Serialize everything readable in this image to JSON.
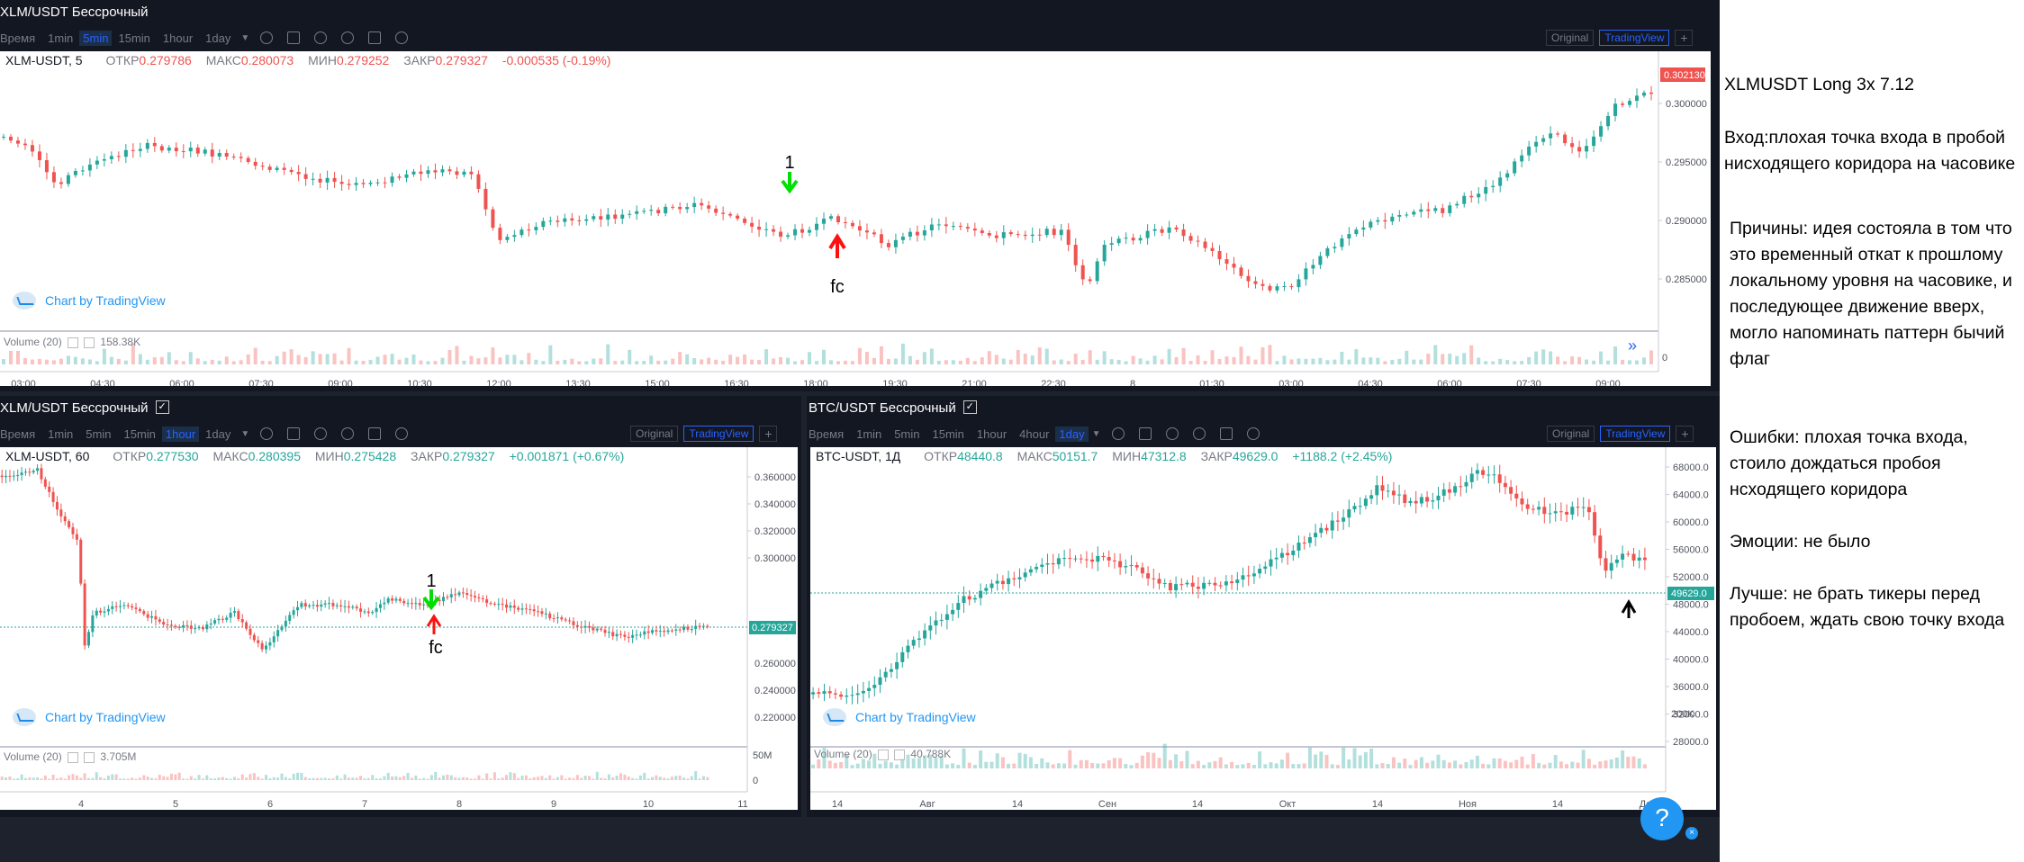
{
  "colors": {
    "up": "#26a69a",
    "down": "#ef5350",
    "accent": "#2962ff"
  },
  "top": {
    "title": "XLM/USDT Бессрочный",
    "toolbar": [
      "Время",
      "1min",
      "5min",
      "15min",
      "1hour",
      "1day"
    ],
    "active_tf": "5min",
    "view": {
      "original": "Original",
      "tradingview": "TradingView",
      "plus": "+"
    },
    "legend": {
      "symbol": "XLM-USDT, 5",
      "o_lbl": "ОТКР",
      "o": "0.279786",
      "h_lbl": "МАКС",
      "h": "0.280073",
      "l_lbl": "МИН",
      "l": "0.279252",
      "c_lbl": "ЗАКР",
      "c": "0.279327",
      "chg": "-0.000535 (-0.19%)"
    },
    "price_ticks": [
      "0.300000",
      "0.295000",
      "0.290000",
      "0.285000"
    ],
    "last_price": "0.302130",
    "volume": {
      "label": "Volume (20)",
      "value": "158.38K"
    },
    "vol_zero": "0",
    "time_ticks": [
      "03:00",
      "04:30",
      "06:00",
      "07:30",
      "09:00",
      "10:30",
      "12:00",
      "13:30",
      "15:00",
      "16:30",
      "18:00",
      "19:30",
      "21:00",
      "22:30",
      "8",
      "01:30",
      "03:00",
      "04:30",
      "06:00",
      "07:30",
      "09:00"
    ],
    "watermark": "Chart by TradingView",
    "marker_entry": "1",
    "marker_fc": "fc",
    "scroll_btn": "»"
  },
  "bl": {
    "title": "XLM/USDT Бессрочный",
    "check": "✓",
    "toolbar": [
      "Время",
      "1min",
      "5min",
      "15min",
      "1hour",
      "1day"
    ],
    "active_tf": "1hour",
    "view": {
      "original": "Original",
      "tradingview": "TradingView",
      "plus": "+"
    },
    "legend": {
      "symbol": "XLM-USDT, 60",
      "o_lbl": "ОТКР",
      "o": "0.277530",
      "h_lbl": "МАКС",
      "h": "0.280395",
      "l_lbl": "МИН",
      "l": "0.275428",
      "c_lbl": "ЗАКР",
      "c": "0.279327",
      "chg": "+0.001871 (+0.67%)"
    },
    "price_ticks": [
      "0.360000",
      "0.340000",
      "0.320000",
      "0.300000",
      "0.260000",
      "0.240000",
      "0.220000"
    ],
    "last_price": "0.279327",
    "volume": {
      "label": "Volume (20)",
      "value": "3.705M"
    },
    "vol_ticks": [
      "50M",
      "0"
    ],
    "time_ticks": [
      "4",
      "5",
      "6",
      "7",
      "8",
      "9",
      "10",
      "11"
    ],
    "watermark": "Chart by TradingView",
    "marker_entry": "1",
    "marker_fc": "fc"
  },
  "br": {
    "title": "BTC/USDT Бессрочный",
    "check": "✓",
    "toolbar": [
      "Время",
      "1min",
      "5min",
      "15min",
      "1hour",
      "4hour",
      "1day"
    ],
    "active_tf": "1day",
    "view": {
      "original": "Original",
      "tradingview": "TradingView",
      "plus": "+"
    },
    "legend": {
      "symbol": "BTC-USDT, 1Д",
      "o_lbl": "ОТКР",
      "o": "48440.8",
      "h_lbl": "МАКС",
      "h": "50151.7",
      "l_lbl": "МИН",
      "l": "47312.8",
      "c_lbl": "ЗАКР",
      "c": "49629.0",
      "chg": "+1188.2 (+2.45%)"
    },
    "price_ticks": [
      "68000.0",
      "64000.0",
      "60000.0",
      "56000.0",
      "52000.0",
      "48000.0",
      "44000.0",
      "40000.0",
      "36000.0",
      "32000.0",
      "28000.0"
    ],
    "last_price": "49629.0",
    "volume": {
      "label": "Volume (20)",
      "value": "40.788K"
    },
    "vol_ticks": [
      "200K"
    ],
    "time_ticks": [
      "14",
      "Авг",
      "14",
      "Сен",
      "14",
      "Окт",
      "14",
      "Ноя",
      "14",
      "Дек"
    ],
    "watermark": "Chart by TradingView"
  },
  "notes": {
    "title": "XLMUSDT Long 3x 7.12",
    "entry": "Вход:плохая точка входа в пробой нисходящего коридора на часовике",
    "reasons": "Причины: идея состояла в том что это временный откат к прошлому локальному уровня на часовике, и последующее движение вверх, могло напоминать паттерн бычий флаг",
    "errors": "Ошибки: плохая точка входа, стоило дождаться пробоя нсходящего коридора",
    "emotions": "Эмоции: не было",
    "better": "Лучше: не брать тикеры перед пробоем, ждать свою точку входа"
  },
  "help": {
    "label": "?",
    "close": "×"
  }
}
